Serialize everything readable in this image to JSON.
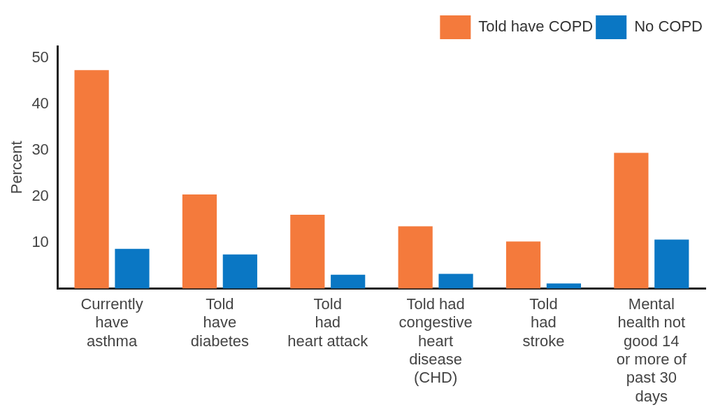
{
  "chart_data": {
    "type": "bar",
    "ylabel": "Percent",
    "categories": [
      "Currently\nhave\nasthma",
      "Told\nhave\ndiabetes",
      "Told\nhad\nheart attack",
      "Told had\ncongestive\nheart\ndisease\n(CHD)",
      "Told\nhad\nstroke",
      "Mental\nhealth not\ngood 14\nor more of\npast 30\ndays"
    ],
    "series": [
      {
        "name": "Told have COPD",
        "color": "#f47a3c",
        "values": [
          47.3,
          20.4,
          16.0,
          13.5,
          10.2,
          29.4
        ]
      },
      {
        "name": "No COPD",
        "color": "#0a77c4",
        "values": [
          8.6,
          7.4,
          3.0,
          3.2,
          1.1,
          10.6
        ]
      }
    ],
    "ylim": [
      0,
      52.5
    ],
    "yticks": [
      10,
      20,
      30,
      40,
      50
    ],
    "grid": false,
    "legend": "top right"
  }
}
